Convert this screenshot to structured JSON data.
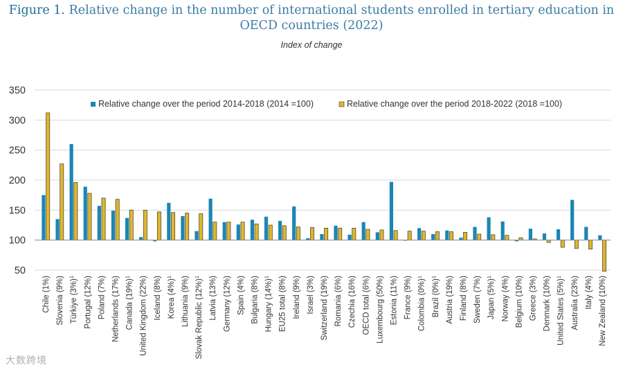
{
  "title": {
    "figure_label": "Figure 1.",
    "text_line1": "Relative change in the number of international students enrolled in tertiary education in",
    "text_line2": "OECD countries (2022)"
  },
  "subtitle": "Index of change",
  "watermark": "大数跨境",
  "colors": {
    "series1": "#1b86b4",
    "series2": "#e0b62a",
    "outline2": "#3a3a3a",
    "grid": "#d9d9d9",
    "axis_text": "#333333"
  },
  "chart_data": {
    "type": "bar",
    "title": "Relative change in the number of international students enrolled in tertiary education in OECD countries (2022)",
    "subtitle": "Index of change",
    "xlabel": "",
    "ylabel": "",
    "baseline": 100,
    "ylim": [
      50,
      350
    ],
    "yticks": [
      50,
      100,
      150,
      200,
      250,
      300,
      350
    ],
    "grid": true,
    "legend_position": "top",
    "categories": [
      {
        "label": "Chile (1%)",
        "sup": ""
      },
      {
        "label": "Slovenia (9%)",
        "sup": ""
      },
      {
        "label": "Türkiye (3%)",
        "sup": "1"
      },
      {
        "label": "Portugal (12%)",
        "sup": ""
      },
      {
        "label": "Poland (7%)",
        "sup": ""
      },
      {
        "label": "Netherlands (17%)",
        "sup": ""
      },
      {
        "label": "Canada (19%)",
        "sup": "1"
      },
      {
        "label": "United Kingdom (22%)",
        "sup": ""
      },
      {
        "label": "Iceland (8%)",
        "sup": ""
      },
      {
        "label": "Korea (4%)",
        "sup": "1"
      },
      {
        "label": "Lithuania (9%)",
        "sup": ""
      },
      {
        "label": "Slovak Republic (12%)",
        "sup": "1"
      },
      {
        "label": "Latvia (13%)",
        "sup": ""
      },
      {
        "label": "Germany (12%)",
        "sup": ""
      },
      {
        "label": "Spain (4%)",
        "sup": ""
      },
      {
        "label": "Bulgaria (8%)",
        "sup": ""
      },
      {
        "label": "Hungary (14%)",
        "sup": "1"
      },
      {
        "label": "EU25 total (8%)",
        "sup": ""
      },
      {
        "label": "Ireland (9%)",
        "sup": ""
      },
      {
        "label": "Israel (3%)",
        "sup": ""
      },
      {
        "label": "Switzerland (19%)",
        "sup": ""
      },
      {
        "label": "Romania (6%)",
        "sup": ""
      },
      {
        "label": "Czechia (16%)",
        "sup": ""
      },
      {
        "label": "OECD total (6%)",
        "sup": ""
      },
      {
        "label": "Luxembourg (50%)",
        "sup": ""
      },
      {
        "label": "Estonia (11%)",
        "sup": ""
      },
      {
        "label": "France (9%)",
        "sup": ""
      },
      {
        "label": "Colombia (0%)",
        "sup": "1"
      },
      {
        "label": "Brazil (0%)",
        "sup": "1"
      },
      {
        "label": "Austria (19%)",
        "sup": ""
      },
      {
        "label": "Finland (8%)",
        "sup": ""
      },
      {
        "label": "Sweden (7%)",
        "sup": ""
      },
      {
        "label": "Japan (5%)",
        "sup": "1"
      },
      {
        "label": "Norway (4%)",
        "sup": ""
      },
      {
        "label": "Belgium (10%)",
        "sup": ""
      },
      {
        "label": "Greece (3%)",
        "sup": ""
      },
      {
        "label": "Denmark (10%)",
        "sup": ""
      },
      {
        "label": "United States (5%)",
        "sup": "1"
      },
      {
        "label": "Australia (23%)",
        "sup": ""
      },
      {
        "label": "Italy (4%)",
        "sup": ""
      },
      {
        "label": "New Zealand (10%)",
        "sup": ""
      }
    ],
    "series": [
      {
        "name": "Relative change over the period 2014-2018 (2014 =100)",
        "values": [
          175,
          135,
          260,
          189,
          157,
          149,
          137,
          105,
          98,
          162,
          140,
          115,
          169,
          130,
          126,
          134,
          139,
          132,
          156,
          103,
          110,
          124,
          109,
          130,
          113,
          197,
          99,
          120,
          110,
          116,
          104,
          122,
          138,
          131,
          98,
          119,
          111,
          118,
          167,
          122,
          108
        ]
      },
      {
        "name": "Relative change over the period 2018-2022 (2018 =100)",
        "values": [
          312,
          227,
          196,
          178,
          170,
          168,
          150,
          150,
          147,
          146,
          145,
          144,
          130,
          130,
          130,
          127,
          125,
          124,
          122,
          121,
          120,
          120,
          120,
          118,
          117,
          116,
          115,
          115,
          114,
          114,
          113,
          110,
          109,
          108,
          104,
          102,
          96,
          88,
          86,
          85,
          48
        ]
      }
    ]
  }
}
